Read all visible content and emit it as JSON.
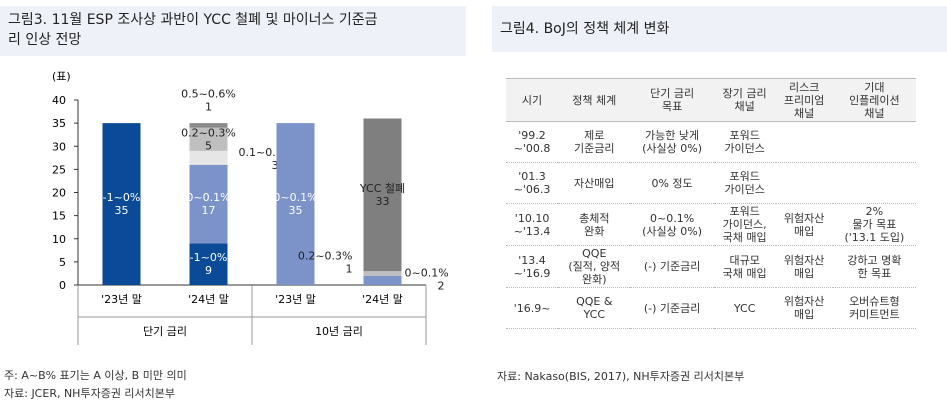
{
  "left": {
    "title": "그림3. 11월 ESP 조사상 과반이 YCC 철폐 및 마이너스 기준금\n리 인상 전망",
    "chart_data": {
      "type": "bar",
      "stacked": true,
      "y_label": "(표)",
      "categories": [
        "'23년 말",
        "'24년 말",
        "'23년 말",
        "'24년 말"
      ],
      "groups": [
        "단기 금리",
        "10년 금리"
      ],
      "ylim": [
        0,
        40
      ],
      "yticks": [
        0,
        5,
        10,
        15,
        20,
        25,
        30,
        35,
        40
      ],
      "series": [
        {
          "name": "-1~0%",
          "color": "#0a4a96",
          "values": [
            35,
            9,
            null,
            null
          ]
        },
        {
          "name": "0~0.1%",
          "color": "#7b93c9",
          "values": [
            null,
            17,
            35,
            2
          ]
        },
        {
          "name": "0.1~0.2%",
          "color": "#e6e6e6",
          "values": [
            null,
            3,
            null,
            null
          ]
        },
        {
          "name": "0.2~0.3%",
          "color": "#bfbfbf",
          "values": [
            null,
            5,
            null,
            1
          ]
        },
        {
          "name": "0.5~0.6%",
          "color": "#8c8c8c",
          "values": [
            null,
            1,
            null,
            null
          ]
        },
        {
          "name": "YCC 철폐",
          "color": "#7f7f7f",
          "values": [
            null,
            null,
            null,
            33
          ]
        }
      ]
    },
    "notes": [
      "주: A~B% 표기는 A 이상, B 미만 의미",
      "자료: JCER, NH투자증권 리서치본부"
    ]
  },
  "right": {
    "title": "그림4. BoJ의 정책 체계 변화",
    "table": {
      "header": [
        "시기",
        "정책 체계",
        "단기 금리\n목표",
        "장기 금리\n채널",
        "리스크\n프리미엄\n채널",
        "기대\n인플레이션\n채널"
      ],
      "rows": [
        [
          "'99.2\n~'00.8",
          "제로\n기준금리",
          "가능한 낮게\n(사실상 0%)",
          "포워드\n가이던스",
          null,
          null
        ],
        [
          "'01.3\n~'06.3",
          "자산매입",
          "0% 정도",
          "포워드\n가이던스",
          null,
          null
        ],
        [
          "'10.10\n~'13.4",
          "총체적\n완화",
          "0~0.1%\n(사실상 0%)",
          "포워드\n가이던스,\n국채 매입",
          "위험자산\n매입",
          "2%\n물가 목표\n('13.1 도입)"
        ],
        [
          "'13.4\n~'16.9",
          "QQE\n(질적, 양적\n완화)",
          "(-) 기준금리",
          "대규모\n국채 매입",
          "위험자산\n매입",
          "강하고 명확\n한 목표"
        ],
        [
          "'16.9~",
          "QQE &\nYCC",
          "(-) 기준금리",
          "YCC",
          "위험자산\n매입",
          "오버슈트형\n커미트먼트"
        ]
      ]
    },
    "source": "자료: Nakaso(BIS, 2017), NH투자증권 리서치본부"
  }
}
